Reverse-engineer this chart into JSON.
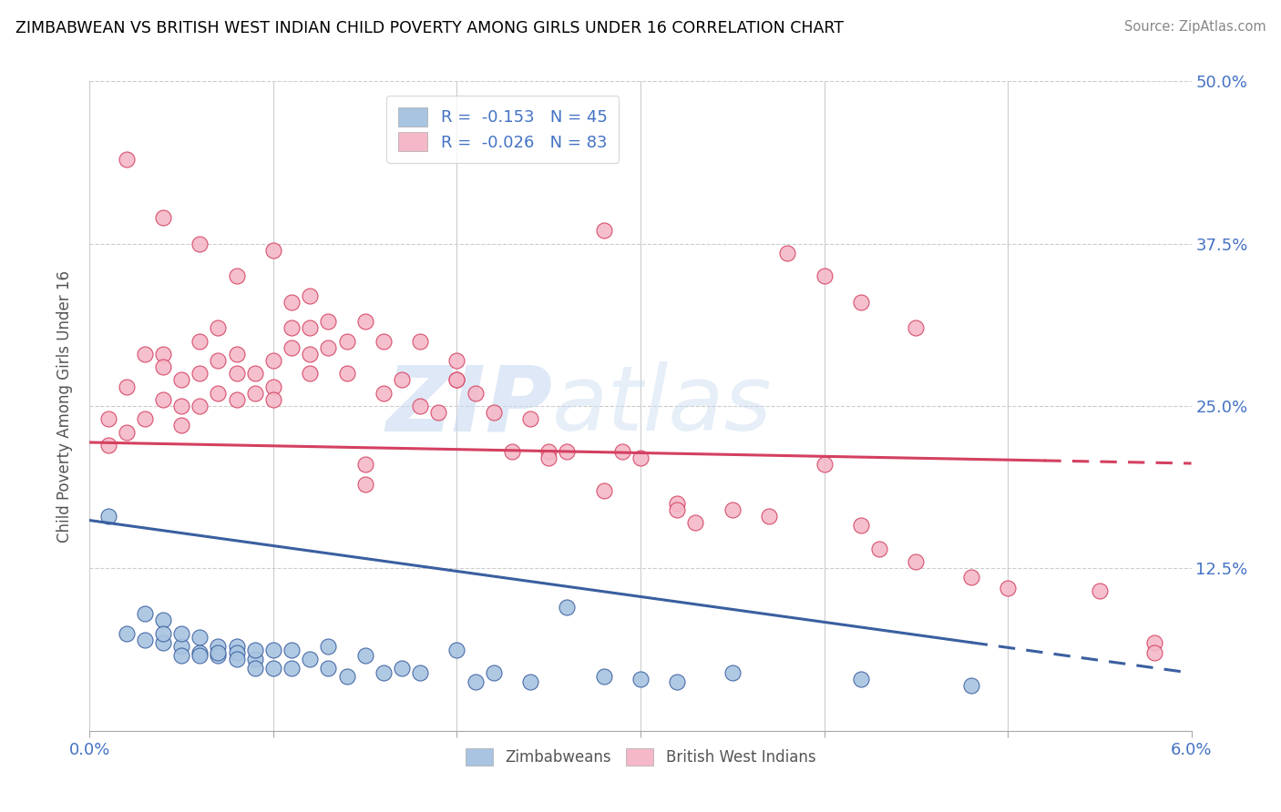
{
  "title": "ZIMBABWEAN VS BRITISH WEST INDIAN CHILD POVERTY AMONG GIRLS UNDER 16 CORRELATION CHART",
  "source": "Source: ZipAtlas.com",
  "ylabel": "Child Poverty Among Girls Under 16",
  "xlim": [
    0.0,
    0.06
  ],
  "ylim": [
    0.0,
    0.5
  ],
  "zim_color": "#a8c4e0",
  "bwi_color": "#f4b8c8",
  "zim_line_color": "#3a5fa0",
  "bwi_line_color": "#d44060",
  "legend_zim_label": "R =  -0.153   N = 45",
  "legend_bwi_label": "R =  -0.026   N = 83",
  "watermark_zip": "ZIP",
  "watermark_atlas": "atlas",
  "zim_trend_x0": 0.0,
  "zim_trend_y0": 0.162,
  "zim_trend_x1": 0.048,
  "zim_trend_y1": 0.068,
  "zim_trend_dash_x0": 0.048,
  "zim_trend_dash_x1": 0.06,
  "bwi_trend_x0": 0.0,
  "bwi_trend_y0": 0.222,
  "bwi_trend_x1": 0.052,
  "bwi_trend_y1": 0.208,
  "bwi_trend_dash_x0": 0.052,
  "bwi_trend_dash_x1": 0.06,
  "zim_scatter_x": [
    0.001,
    0.002,
    0.003,
    0.003,
    0.004,
    0.004,
    0.004,
    0.005,
    0.005,
    0.005,
    0.006,
    0.006,
    0.006,
    0.007,
    0.007,
    0.007,
    0.008,
    0.008,
    0.008,
    0.009,
    0.009,
    0.009,
    0.01,
    0.01,
    0.011,
    0.011,
    0.012,
    0.013,
    0.013,
    0.014,
    0.015,
    0.016,
    0.017,
    0.018,
    0.02,
    0.021,
    0.022,
    0.024,
    0.026,
    0.028,
    0.03,
    0.032,
    0.035,
    0.042,
    0.048
  ],
  "zim_scatter_y": [
    0.165,
    0.075,
    0.09,
    0.07,
    0.085,
    0.068,
    0.075,
    0.065,
    0.075,
    0.058,
    0.06,
    0.072,
    0.058,
    0.065,
    0.058,
    0.06,
    0.065,
    0.06,
    0.055,
    0.055,
    0.062,
    0.048,
    0.062,
    0.048,
    0.062,
    0.048,
    0.055,
    0.065,
    0.048,
    0.042,
    0.058,
    0.045,
    0.048,
    0.045,
    0.062,
    0.038,
    0.045,
    0.038,
    0.095,
    0.042,
    0.04,
    0.038,
    0.045,
    0.04,
    0.035
  ],
  "bwi_scatter_x": [
    0.001,
    0.001,
    0.002,
    0.002,
    0.003,
    0.003,
    0.004,
    0.004,
    0.004,
    0.005,
    0.005,
    0.005,
    0.006,
    0.006,
    0.006,
    0.007,
    0.007,
    0.007,
    0.008,
    0.008,
    0.008,
    0.009,
    0.009,
    0.01,
    0.01,
    0.01,
    0.011,
    0.011,
    0.011,
    0.012,
    0.012,
    0.012,
    0.013,
    0.013,
    0.014,
    0.014,
    0.015,
    0.015,
    0.016,
    0.016,
    0.017,
    0.018,
    0.019,
    0.02,
    0.02,
    0.021,
    0.022,
    0.023,
    0.024,
    0.025,
    0.026,
    0.028,
    0.029,
    0.03,
    0.032,
    0.033,
    0.035,
    0.037,
    0.04,
    0.042,
    0.043,
    0.045,
    0.048,
    0.05,
    0.055,
    0.058,
    0.002,
    0.004,
    0.006,
    0.008,
    0.01,
    0.012,
    0.015,
    0.018,
    0.02,
    0.025,
    0.028,
    0.032,
    0.058,
    0.038,
    0.04,
    0.042,
    0.045
  ],
  "bwi_scatter_y": [
    0.24,
    0.22,
    0.265,
    0.23,
    0.29,
    0.24,
    0.29,
    0.255,
    0.28,
    0.27,
    0.25,
    0.235,
    0.3,
    0.275,
    0.25,
    0.31,
    0.285,
    0.26,
    0.29,
    0.275,
    0.255,
    0.275,
    0.26,
    0.285,
    0.265,
    0.255,
    0.33,
    0.31,
    0.295,
    0.31,
    0.29,
    0.275,
    0.315,
    0.295,
    0.3,
    0.275,
    0.205,
    0.19,
    0.3,
    0.26,
    0.27,
    0.25,
    0.245,
    0.285,
    0.27,
    0.26,
    0.245,
    0.215,
    0.24,
    0.215,
    0.215,
    0.385,
    0.215,
    0.21,
    0.175,
    0.16,
    0.17,
    0.165,
    0.205,
    0.158,
    0.14,
    0.13,
    0.118,
    0.11,
    0.108,
    0.068,
    0.44,
    0.395,
    0.375,
    0.35,
    0.37,
    0.335,
    0.315,
    0.3,
    0.27,
    0.21,
    0.185,
    0.17,
    0.06,
    0.368,
    0.35,
    0.33,
    0.31
  ]
}
